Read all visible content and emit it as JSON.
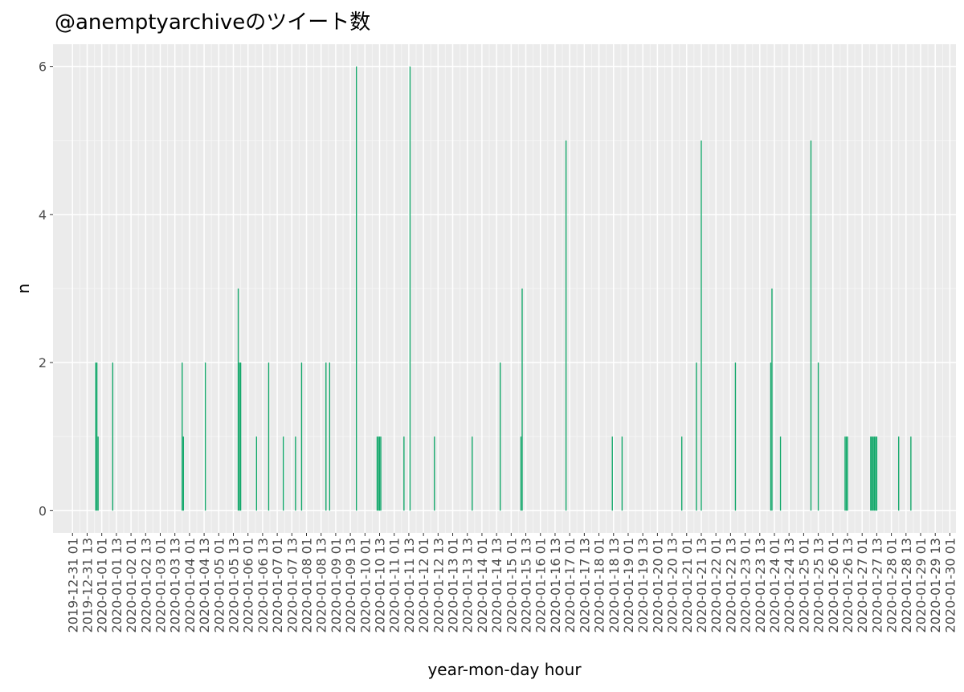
{
  "chart_data": {
    "type": "bar",
    "title": "@anemptyarchiveのツイート数",
    "x_label": "year-mon-day hour",
    "y_label": "n",
    "color": "#12a86a",
    "grid": true,
    "x": [
      "2019-12-31 20",
      "2019-12-31 21",
      "2019-12-31 22",
      "2020-01-01 10",
      "2020-01-03 19",
      "2020-01-03 20",
      "2020-01-04 14",
      "2020-01-05 17",
      "2020-01-05 18",
      "2020-01-05 19",
      "2020-01-06 08",
      "2020-01-06 18",
      "2020-01-07 06",
      "2020-01-07 16",
      "2020-01-07 21",
      "2020-01-08 17",
      "2020-01-08 20",
      "2020-01-09 18",
      "2020-01-10 11",
      "2020-01-10 12",
      "2020-01-10 13",
      "2020-01-10 14",
      "2020-01-11 09",
      "2020-01-11 14",
      "2020-01-12 10",
      "2020-01-13 17",
      "2020-01-14 16",
      "2020-01-15 09",
      "2020-01-15 10",
      "2020-01-16 22",
      "2020-01-18 12",
      "2020-01-18 20",
      "2020-01-20 21",
      "2020-01-21 09",
      "2020-01-21 13",
      "2020-01-22 17",
      "2020-01-23 22",
      "2020-01-23 23",
      "2020-01-24 06",
      "2020-01-25 07",
      "2020-01-25 13",
      "2020-01-26 11",
      "2020-01-26 12",
      "2020-01-26 13",
      "2020-01-27 08",
      "2020-01-27 09",
      "2020-01-27 10",
      "2020-01-27 11",
      "2020-01-27 12",
      "2020-01-27 13",
      "2020-01-28 07",
      "2020-01-28 17"
    ],
    "values": [
      2,
      2,
      1,
      2,
      2,
      1,
      2,
      3,
      2,
      2,
      1,
      2,
      1,
      1,
      2,
      2,
      2,
      6,
      1,
      1,
      1,
      1,
      1,
      6,
      1,
      1,
      2,
      1,
      3,
      5,
      1,
      1,
      1,
      2,
      5,
      2,
      2,
      3,
      1,
      5,
      2,
      1,
      1,
      1,
      1,
      1,
      1,
      1,
      1,
      1,
      1,
      1
    ],
    "xlim": [
      "2019-12-30 09",
      "2020-01-30 06"
    ],
    "xticks": [
      "2019-12-31 01",
      "2019-12-31 13",
      "2020-01-01 01",
      "2020-01-01 13",
      "2020-01-02 01",
      "2020-01-02 13",
      "2020-01-03 01",
      "2020-01-03 13",
      "2020-01-04 01",
      "2020-01-04 13",
      "2020-01-05 01",
      "2020-01-05 13",
      "2020-01-06 01",
      "2020-01-06 13",
      "2020-01-07 01",
      "2020-01-07 13",
      "2020-01-08 01",
      "2020-01-08 13",
      "2020-01-09 01",
      "2020-01-09 13",
      "2020-01-10 01",
      "2020-01-10 13",
      "2020-01-11 01",
      "2020-01-11 13",
      "2020-01-12 01",
      "2020-01-12 13",
      "2020-01-13 01",
      "2020-01-13 13",
      "2020-01-14 01",
      "2020-01-14 13",
      "2020-01-15 01",
      "2020-01-15 13",
      "2020-01-16 01",
      "2020-01-16 13",
      "2020-01-17 01",
      "2020-01-17 13",
      "2020-01-18 01",
      "2020-01-18 13",
      "2020-01-19 01",
      "2020-01-19 13",
      "2020-01-20 01",
      "2020-01-20 13",
      "2020-01-21 01",
      "2020-01-21 13",
      "2020-01-22 01",
      "2020-01-22 13",
      "2020-01-23 01",
      "2020-01-23 13",
      "2020-01-24 01",
      "2020-01-24 13",
      "2020-01-25 01",
      "2020-01-25 13",
      "2020-01-26 01",
      "2020-01-26 13",
      "2020-01-27 01",
      "2020-01-27 13",
      "2020-01-28 01",
      "2020-01-28 13",
      "2020-01-29 01",
      "2020-01-29 13",
      "2020-01-30 01"
    ],
    "ylim": [
      -0.3,
      6.3
    ],
    "yticks": [
      0,
      2,
      4,
      6
    ]
  }
}
